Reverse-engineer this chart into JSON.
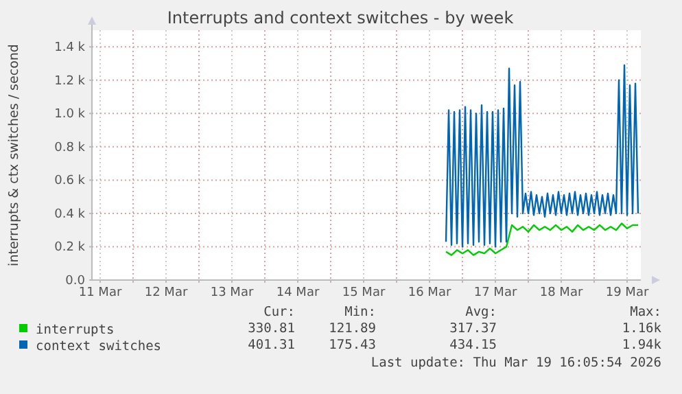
{
  "chart_data": {
    "type": "line",
    "title": "Interrupts and context switches - by week",
    "ylabel": "interrupts & ctx switches / second",
    "xlim": [
      "2026-03-11T09:00",
      "2026-03-19T17:00"
    ],
    "xticks": [
      {
        "value": "2026-03-11T12:00",
        "label": "11 Mar"
      },
      {
        "value": "2026-03-12T00:00",
        "label": null
      },
      {
        "value": "2026-03-12T12:00",
        "label": "12 Mar"
      },
      {
        "value": "2026-03-13T00:00",
        "label": null
      },
      {
        "value": "2026-03-13T12:00",
        "label": "13 Mar"
      },
      {
        "value": "2026-03-14T00:00",
        "label": null
      },
      {
        "value": "2026-03-14T12:00",
        "label": "14 Mar"
      },
      {
        "value": "2026-03-15T00:00",
        "label": null
      },
      {
        "value": "2026-03-15T12:00",
        "label": "15 Mar"
      },
      {
        "value": "2026-03-16T00:00",
        "label": null
      },
      {
        "value": "2026-03-16T12:00",
        "label": "16 Mar"
      },
      {
        "value": "2026-03-17T00:00",
        "label": null
      },
      {
        "value": "2026-03-17T12:00",
        "label": "17 Mar"
      },
      {
        "value": "2026-03-18T00:00",
        "label": null
      },
      {
        "value": "2026-03-18T12:00",
        "label": "18 Mar"
      },
      {
        "value": "2026-03-19T00:00",
        "label": null
      },
      {
        "value": "2026-03-19T12:00",
        "label": "19 Mar"
      }
    ],
    "ylim": [
      0,
      1500
    ],
    "yticks": [
      {
        "value": 0,
        "label": "0.0"
      },
      {
        "value": 200,
        "label": "0.2 k"
      },
      {
        "value": 400,
        "label": "0.4 k"
      },
      {
        "value": 600,
        "label": "0.6 k"
      },
      {
        "value": 800,
        "label": "0.8 k"
      },
      {
        "value": 1000,
        "label": "1.0 k"
      },
      {
        "value": 1200,
        "label": "1.2 k"
      },
      {
        "value": 1400,
        "label": "1.4 k"
      }
    ],
    "grid": true,
    "legend": "bottom",
    "series": [
      {
        "name": "interrupts",
        "color": "#00cc00",
        "x": [
          "2026-03-16T18:00",
          "2026-03-16T20:00",
          "2026-03-16T22:00",
          "2026-03-17T00:00",
          "2026-03-17T02:00",
          "2026-03-17T04:00",
          "2026-03-17T06:00",
          "2026-03-17T08:00",
          "2026-03-17T10:00",
          "2026-03-17T12:00",
          "2026-03-17T14:00",
          "2026-03-17T16:00",
          "2026-03-17T18:00",
          "2026-03-17T20:00",
          "2026-03-17T22:00",
          "2026-03-18T00:00",
          "2026-03-18T02:00",
          "2026-03-18T04:00",
          "2026-03-18T06:00",
          "2026-03-18T08:00",
          "2026-03-18T10:00",
          "2026-03-18T12:00",
          "2026-03-18T14:00",
          "2026-03-18T16:00",
          "2026-03-18T18:00",
          "2026-03-18T20:00",
          "2026-03-18T22:00",
          "2026-03-19T00:00",
          "2026-03-19T02:00",
          "2026-03-19T04:00",
          "2026-03-19T06:00",
          "2026-03-19T08:00",
          "2026-03-19T10:00",
          "2026-03-19T12:00",
          "2026-03-19T14:00",
          "2026-03-19T16:00"
        ],
        "values": [
          170,
          150,
          180,
          160,
          180,
          150,
          170,
          160,
          190,
          160,
          180,
          200,
          330,
          300,
          320,
          290,
          330,
          300,
          320,
          300,
          330,
          300,
          320,
          290,
          330,
          300,
          320,
          300,
          330,
          300,
          320,
          300,
          340,
          310,
          330,
          330
        ]
      },
      {
        "name": "context switches",
        "color": "#0066b3",
        "x": [
          "2026-03-16T18:00",
          "2026-03-16T19:00",
          "2026-03-16T20:00",
          "2026-03-16T21:00",
          "2026-03-16T22:00",
          "2026-03-16T23:00",
          "2026-03-17T00:00",
          "2026-03-17T01:00",
          "2026-03-17T02:00",
          "2026-03-17T03:00",
          "2026-03-17T04:00",
          "2026-03-17T05:00",
          "2026-03-17T06:00",
          "2026-03-17T07:00",
          "2026-03-17T08:00",
          "2026-03-17T09:00",
          "2026-03-17T10:00",
          "2026-03-17T11:00",
          "2026-03-17T12:00",
          "2026-03-17T13:00",
          "2026-03-17T14:00",
          "2026-03-17T15:00",
          "2026-03-17T16:00",
          "2026-03-17T17:00",
          "2026-03-17T18:00",
          "2026-03-17T19:00",
          "2026-03-17T20:00",
          "2026-03-17T21:00",
          "2026-03-17T22:00",
          "2026-03-17T23:00",
          "2026-03-18T00:00",
          "2026-03-18T01:00",
          "2026-03-18T02:00",
          "2026-03-18T03:00",
          "2026-03-18T04:00",
          "2026-03-18T05:00",
          "2026-03-18T06:00",
          "2026-03-18T07:00",
          "2026-03-18T08:00",
          "2026-03-18T09:00",
          "2026-03-18T10:00",
          "2026-03-18T11:00",
          "2026-03-18T12:00",
          "2026-03-18T13:00",
          "2026-03-18T14:00",
          "2026-03-18T15:00",
          "2026-03-18T16:00",
          "2026-03-18T17:00",
          "2026-03-18T18:00",
          "2026-03-18T19:00",
          "2026-03-18T20:00",
          "2026-03-18T21:00",
          "2026-03-18T22:00",
          "2026-03-18T23:00",
          "2026-03-19T00:00",
          "2026-03-19T01:00",
          "2026-03-19T02:00",
          "2026-03-19T03:00",
          "2026-03-19T04:00",
          "2026-03-19T05:00",
          "2026-03-19T06:00",
          "2026-03-19T07:00",
          "2026-03-19T08:00",
          "2026-03-19T09:00",
          "2026-03-19T10:00",
          "2026-03-19T11:00",
          "2026-03-19T12:00",
          "2026-03-19T13:00",
          "2026-03-19T14:00",
          "2026-03-19T15:00",
          "2026-03-19T16:00"
        ],
        "values": [
          230,
          1020,
          210,
          1010,
          220,
          1020,
          200,
          1040,
          220,
          1020,
          210,
          1000,
          230,
          1050,
          210,
          1010,
          220,
          1010,
          200,
          1020,
          230,
          1030,
          230,
          1270,
          400,
          1170,
          380,
          1190,
          400,
          520,
          400,
          530,
          390,
          510,
          400,
          500,
          380,
          520,
          400,
          510,
          390,
          530,
          400,
          510,
          390,
          520,
          400,
          530,
          390,
          510,
          400,
          520,
          390,
          510,
          400,
          530,
          390,
          510,
          400,
          520,
          390,
          510,
          400,
          1200,
          400,
          1290,
          390,
          1170,
          400,
          1180,
          400
        ]
      }
    ],
    "annotations": [
      "Cur:",
      "Min:",
      "Avg:",
      "Max:",
      "330.81",
      "121.89",
      "317.37",
      "1.16k",
      "401.31",
      "175.43",
      "434.15",
      "1.94k",
      "Last update: Thu Mar 19 16:05:54 2026"
    ]
  }
}
